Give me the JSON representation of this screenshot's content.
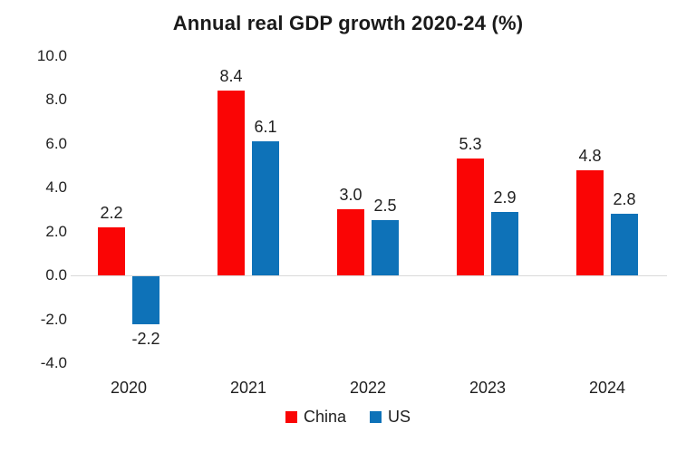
{
  "chart_data": {
    "type": "bar",
    "title": "Annual real GDP growth 2020-24 (%)",
    "categories": [
      "2020",
      "2021",
      "2022",
      "2023",
      "2024"
    ],
    "series": [
      {
        "name": "China",
        "color": "#fa0505",
        "values": [
          2.2,
          8.4,
          3.0,
          5.3,
          4.8
        ]
      },
      {
        "name": "US",
        "color": "#0e72b8",
        "values": [
          -2.2,
          6.1,
          2.5,
          2.9,
          2.8
        ]
      }
    ],
    "ylim": [
      -4.0,
      10.0
    ],
    "yticks": [
      10,
      8,
      6,
      4,
      2,
      0,
      -2,
      -4
    ],
    "tick_format": "one-decimal",
    "data_labels": true,
    "legend_position": "bottom",
    "grid": "zero-line-only",
    "colors": {
      "text": "#1f1f1f",
      "zero_line": "#d9d9d9",
      "background": "#ffffff"
    }
  }
}
